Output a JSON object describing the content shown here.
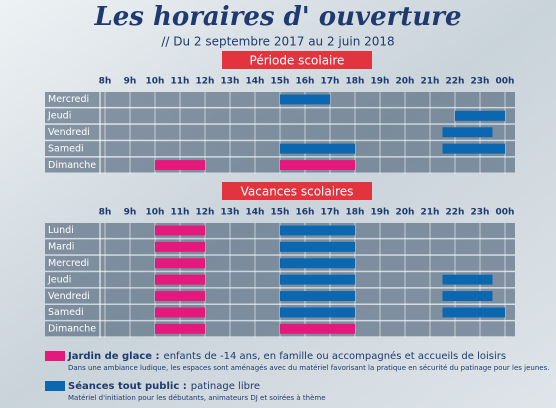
{
  "title": "Les horaires d' ouverture",
  "subtitle": "// Du 2 septembre 2017 au 2 juin 2018",
  "hours": [
    {
      "value": 8,
      "label": "8h"
    },
    {
      "value": 9,
      "label": "9h"
    },
    {
      "value": 10,
      "label": "10h"
    },
    {
      "value": 11,
      "label": "11h"
    },
    {
      "value": 12,
      "label": "12h"
    },
    {
      "value": 13,
      "label": "13h"
    },
    {
      "value": 14,
      "label": "14h"
    },
    {
      "value": 15,
      "label": "15h"
    },
    {
      "value": 16,
      "label": "16h"
    },
    {
      "value": 17,
      "label": "17h"
    },
    {
      "value": 18,
      "label": "18h"
    },
    {
      "value": 19,
      "label": "19h"
    },
    {
      "value": 20,
      "label": "20h"
    },
    {
      "value": 21,
      "label": "21h"
    },
    {
      "value": 22,
      "label": "22h"
    },
    {
      "value": 23,
      "label": "23h"
    },
    {
      "value": 24,
      "label": "00h"
    }
  ],
  "legend": [
    {
      "label": "Jardin de glace :",
      "text": "enfants de -14 ans, en famille ou accompagnés et accueils de loisirs",
      "note": "Dans une ambiance ludique, les espaces sont aménagés avec du matériel favorisant la pratique en sécurité du patinage pour les jeunes.",
      "color": "#e5197c"
    },
    {
      "label": "Séances tout public :",
      "text": "patinage libre",
      "note": "Matériel d'initiation pour les débutants, animateurs DJ et soirées à thème",
      "color": "#0b67b0"
    }
  ],
  "sections": [
    {
      "title": "Période scolaire",
      "rows": [
        {
          "day": "Mercredi",
          "sessions": [
            {
              "legend": 1,
              "start": 15,
              "end": 17
            }
          ]
        },
        {
          "day": "Jeudi",
          "sessions": [
            {
              "legend": 1,
              "start": 22,
              "end": 24
            }
          ]
        },
        {
          "day": "Vendredi",
          "sessions": [
            {
              "legend": 1,
              "start": 21.5,
              "end": 23.5
            }
          ]
        },
        {
          "day": "Samedi",
          "sessions": [
            {
              "legend": 1,
              "start": 15,
              "end": 18
            },
            {
              "legend": 1,
              "start": 21.5,
              "end": 24
            }
          ]
        },
        {
          "day": "Dimanche",
          "sessions": [
            {
              "legend": 0,
              "start": 10,
              "end": 12
            },
            {
              "legend": 0,
              "start": 15,
              "end": 18
            }
          ]
        }
      ]
    },
    {
      "title": "Vacances scolaires",
      "rows": [
        {
          "day": "Lundi",
          "sessions": [
            {
              "legend": 0,
              "start": 10,
              "end": 12
            },
            {
              "legend": 1,
              "start": 15,
              "end": 18
            }
          ]
        },
        {
          "day": "Mardi",
          "sessions": [
            {
              "legend": 0,
              "start": 10,
              "end": 12
            },
            {
              "legend": 1,
              "start": 15,
              "end": 18
            }
          ]
        },
        {
          "day": "Mercredi",
          "sessions": [
            {
              "legend": 0,
              "start": 10,
              "end": 12
            },
            {
              "legend": 1,
              "start": 15,
              "end": 18
            }
          ]
        },
        {
          "day": "Jeudi",
          "sessions": [
            {
              "legend": 0,
              "start": 10,
              "end": 12
            },
            {
              "legend": 1,
              "start": 15,
              "end": 18
            },
            {
              "legend": 1,
              "start": 21.5,
              "end": 23.5
            }
          ]
        },
        {
          "day": "Vendredi",
          "sessions": [
            {
              "legend": 0,
              "start": 10,
              "end": 12
            },
            {
              "legend": 1,
              "start": 15,
              "end": 18
            },
            {
              "legend": 1,
              "start": 21.5,
              "end": 23.5
            }
          ]
        },
        {
          "day": "Samedi",
          "sessions": [
            {
              "legend": 0,
              "start": 10,
              "end": 12
            },
            {
              "legend": 1,
              "start": 15,
              "end": 18
            },
            {
              "legend": 1,
              "start": 21.5,
              "end": 24
            }
          ]
        },
        {
          "day": "Dimanche",
          "sessions": [
            {
              "legend": 0,
              "start": 10,
              "end": 12
            },
            {
              "legend": 0,
              "start": 15,
              "end": 18
            }
          ]
        }
      ]
    }
  ]
}
